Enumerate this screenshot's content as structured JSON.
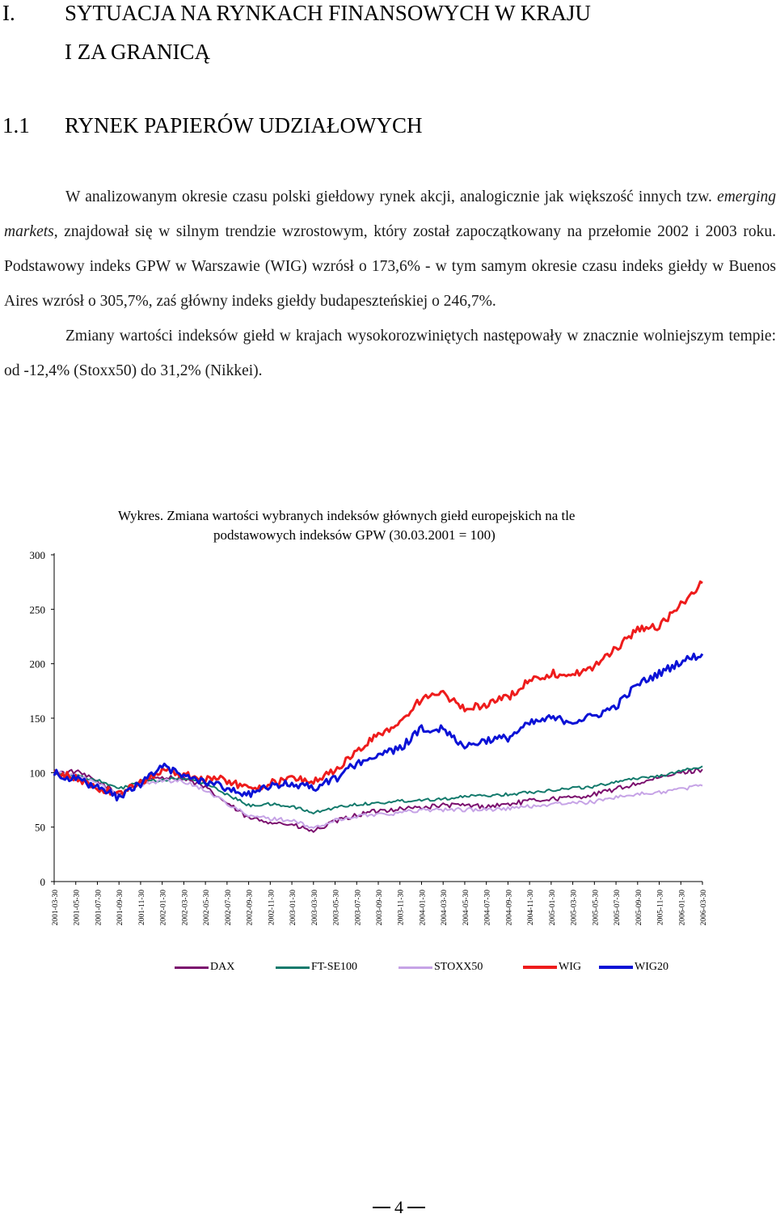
{
  "chapter": {
    "number": "I.",
    "title_line1": "SYTUACJA NA RYNKACH FINANSOWYCH W KRAJU",
    "title_line2": "I ZA GRANICĄ"
  },
  "section": {
    "number": "1.1",
    "title": "RYNEK PAPIERÓW UDZIAŁOWYCH"
  },
  "paragraphs": {
    "p1_a": "W analizowanym okresie czasu polski giełdowy rynek akcji, analogicznie jak większość innych tzw. ",
    "p1_em": "emerging markets",
    "p1_b": ", znajdował się w silnym trendzie wzrostowym, który został zapoczątkowany na przełomie 2002 i 2003 roku. Podstawowy indeks GPW w Warszawie (WIG) wzrósł o 173,6% - w tym samym okresie czasu indeks giełdy w Buenos Aires wzrósł o 305,7%, zaś główny indeks giełdy budapeszteńskiej o 246,7%.",
    "p2": "Zmiany wartości indeksów giełd w krajach wysokorozwiniętych następowały w znacznie wolniejszym tempie: od  -12,4% (Stoxx50) do 31,2% (Nikkei)."
  },
  "chart_title": {
    "line1": "Wykres. Zmiana wartości wybranych indeksów głównych giełd europejskich na tle",
    "line2": "podstawowych indeksów GPW  (30.03.2001 = 100)"
  },
  "chart_data": {
    "type": "line",
    "title": "Wykres. Zmiana wartości wybranych indeksów głównych giełd europejskich na tle podstawowych indeksów GPW  (30.03.2001 = 100)",
    "xlabel": "",
    "ylabel": "",
    "ylim": [
      0,
      300
    ],
    "yticks": [
      "0",
      "50",
      "100",
      "150",
      "200",
      "250",
      "300"
    ],
    "grid": false,
    "legend_position": "bottom",
    "categories": [
      "2001-03-30",
      "2001-05-30",
      "2001-07-30",
      "2001-09-30",
      "2001-11-30",
      "2002-01-30",
      "2002-03-30",
      "2002-05-30",
      "2002-07-30",
      "2002-09-30",
      "2002-11-30",
      "2003-01-30",
      "2003-03-30",
      "2003-05-30",
      "2003-07-30",
      "2003-09-30",
      "2003-11-30",
      "2004-01-30",
      "2004-03-30",
      "2004-05-30",
      "2004-07-30",
      "2004-09-30",
      "2004-11-30",
      "2005-01-30",
      "2005-03-30",
      "2005-05-30",
      "2005-07-30",
      "2005-09-30",
      "2005-11-30",
      "2006-01-30",
      "2006-03-30"
    ],
    "series": [
      {
        "name": "DAX",
        "color": "#7b0f6e",
        "values": [
          100,
          101,
          92,
          80,
          91,
          96,
          95,
          86,
          72,
          58,
          55,
          52,
          46,
          55,
          61,
          65,
          67,
          68,
          70,
          70,
          69,
          71,
          74,
          76,
          77,
          80,
          85,
          90,
          95,
          100,
          103
        ]
      },
      {
        "name": "FT-SE100",
        "color": "#137a6c",
        "values": [
          100,
          97,
          93,
          85,
          92,
          93,
          95,
          90,
          80,
          70,
          71,
          69,
          63,
          68,
          71,
          72,
          74,
          75,
          76,
          78,
          79,
          80,
          82,
          84,
          86,
          87,
          92,
          95,
          97,
          101,
          106
        ]
      },
      {
        "name": "STOXX50",
        "color": "#c6a3e6",
        "values": [
          100,
          98,
          90,
          79,
          89,
          93,
          92,
          84,
          72,
          60,
          58,
          56,
          49,
          56,
          60,
          62,
          63,
          66,
          66,
          66,
          66,
          67,
          69,
          71,
          72,
          73,
          78,
          80,
          82,
          85,
          88
        ]
      },
      {
        "name": "WIG",
        "color": "#ee1c1c",
        "values": [
          100,
          95,
          86,
          80,
          91,
          103,
          98,
          95,
          93,
          85,
          90,
          95,
          92,
          102,
          119,
          135,
          146,
          168,
          172,
          158,
          163,
          169,
          185,
          191,
          190,
          197,
          214,
          232,
          234,
          254,
          274
        ]
      },
      {
        "name": "WIG20",
        "color": "#0b12d6",
        "values": [
          100,
          94,
          86,
          77,
          90,
          106,
          97,
          92,
          86,
          80,
          87,
          90,
          86,
          94,
          109,
          116,
          122,
          140,
          141,
          124,
          130,
          132,
          145,
          150,
          147,
          152,
          161,
          181,
          191,
          202,
          209
        ]
      }
    ]
  },
  "page_number": "4"
}
